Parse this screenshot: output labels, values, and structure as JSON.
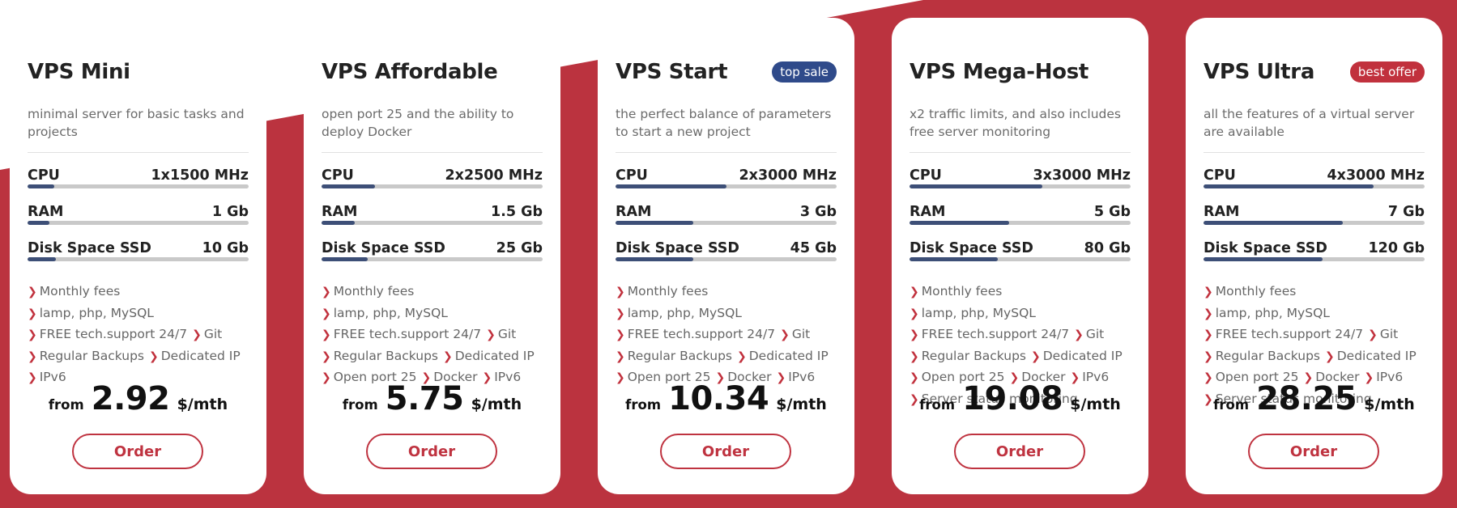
{
  "colors": {
    "accent": "#bb333f",
    "bar": "#3d4f77",
    "top_sale_badge": "#2f4a8a",
    "best_offer_badge": "#c1313d"
  },
  "plans": [
    {
      "name": "VPS Mini",
      "badge": "",
      "description": "minimal server for basic tasks and projects",
      "specs": [
        {
          "name": "CPU",
          "value": "1x1500 MHz",
          "level": 0.12
        },
        {
          "name": "RAM",
          "value": "1 Gb",
          "level": 0.1
        },
        {
          "name": "Disk Space SSD",
          "value": "10 Gb",
          "level": 0.13
        }
      ],
      "features": [
        "Monthly fees",
        "lamp, php, MySQL",
        "FREE tech.support 24/7",
        "Git",
        "Regular Backups",
        "Dedicated IP",
        "IPv6"
      ],
      "price": {
        "from": "from",
        "amount": "2.92",
        "unit": "$/mth"
      },
      "order_label": "Order"
    },
    {
      "name": "VPS Affordable",
      "badge": "",
      "description": "open port 25 and the ability to deploy Docker",
      "specs": [
        {
          "name": "CPU",
          "value": "2x2500 MHz",
          "level": 0.24
        },
        {
          "name": "RAM",
          "value": "1.5 Gb",
          "level": 0.15
        },
        {
          "name": "Disk Space SSD",
          "value": "25 Gb",
          "level": 0.21
        }
      ],
      "features": [
        "Monthly fees",
        "lamp, php, MySQL",
        "FREE tech.support 24/7",
        "Git",
        "Regular Backups",
        "Dedicated IP",
        "Open port 25",
        "Docker",
        "IPv6"
      ],
      "price": {
        "from": "from",
        "amount": "5.75",
        "unit": "$/mth"
      },
      "order_label": "Order"
    },
    {
      "name": "VPS Start",
      "badge": "top sale",
      "badge_color": "#2f4a8a",
      "description": "the perfect balance of parameters to start a new project",
      "specs": [
        {
          "name": "CPU",
          "value": "2x3000 MHz",
          "level": 0.5
        },
        {
          "name": "RAM",
          "value": "3 Gb",
          "level": 0.35
        },
        {
          "name": "Disk Space SSD",
          "value": "45 Gb",
          "level": 0.35
        }
      ],
      "features": [
        "Monthly fees",
        "lamp, php, MySQL",
        "FREE tech.support 24/7",
        "Git",
        "Regular Backups",
        "Dedicated IP",
        "Open port 25",
        "Docker",
        "IPv6"
      ],
      "price": {
        "from": "from",
        "amount": "10.34",
        "unit": "$/mth"
      },
      "order_label": "Order"
    },
    {
      "name": "VPS Mega-Host",
      "badge": "",
      "description": "x2 traffic limits, and also includes free server monitoring",
      "specs": [
        {
          "name": "CPU",
          "value": "3x3000 MHz",
          "level": 0.6
        },
        {
          "name": "RAM",
          "value": "5 Gb",
          "level": 0.45
        },
        {
          "name": "Disk Space SSD",
          "value": "80 Gb",
          "level": 0.4
        }
      ],
      "features": [
        "Monthly fees",
        "lamp, php, MySQL",
        "FREE tech.support 24/7",
        "Git",
        "Regular Backups",
        "Dedicated IP",
        "Open port 25",
        "Docker",
        "IPv6",
        "Server status monitoring"
      ],
      "price": {
        "from": "from",
        "amount": "19.08",
        "unit": "$/mth"
      },
      "order_label": "Order"
    },
    {
      "name": "VPS Ultra",
      "badge": "best offer",
      "badge_color": "#c1313d",
      "description": "all the features of a virtual server are available",
      "specs": [
        {
          "name": "CPU",
          "value": "4x3000 MHz",
          "level": 0.77
        },
        {
          "name": "RAM",
          "value": "7 Gb",
          "level": 0.63
        },
        {
          "name": "Disk Space SSD",
          "value": "120 Gb",
          "level": 0.54
        }
      ],
      "features": [
        "Monthly fees",
        "lamp, php, MySQL",
        "FREE tech.support 24/7",
        "Git",
        "Regular Backups",
        "Dedicated IP",
        "Open port 25",
        "Docker",
        "IPv6",
        "Server status monitoring"
      ],
      "price": {
        "from": "from",
        "amount": "28.25",
        "unit": "$/mth"
      },
      "order_label": "Order"
    }
  ]
}
